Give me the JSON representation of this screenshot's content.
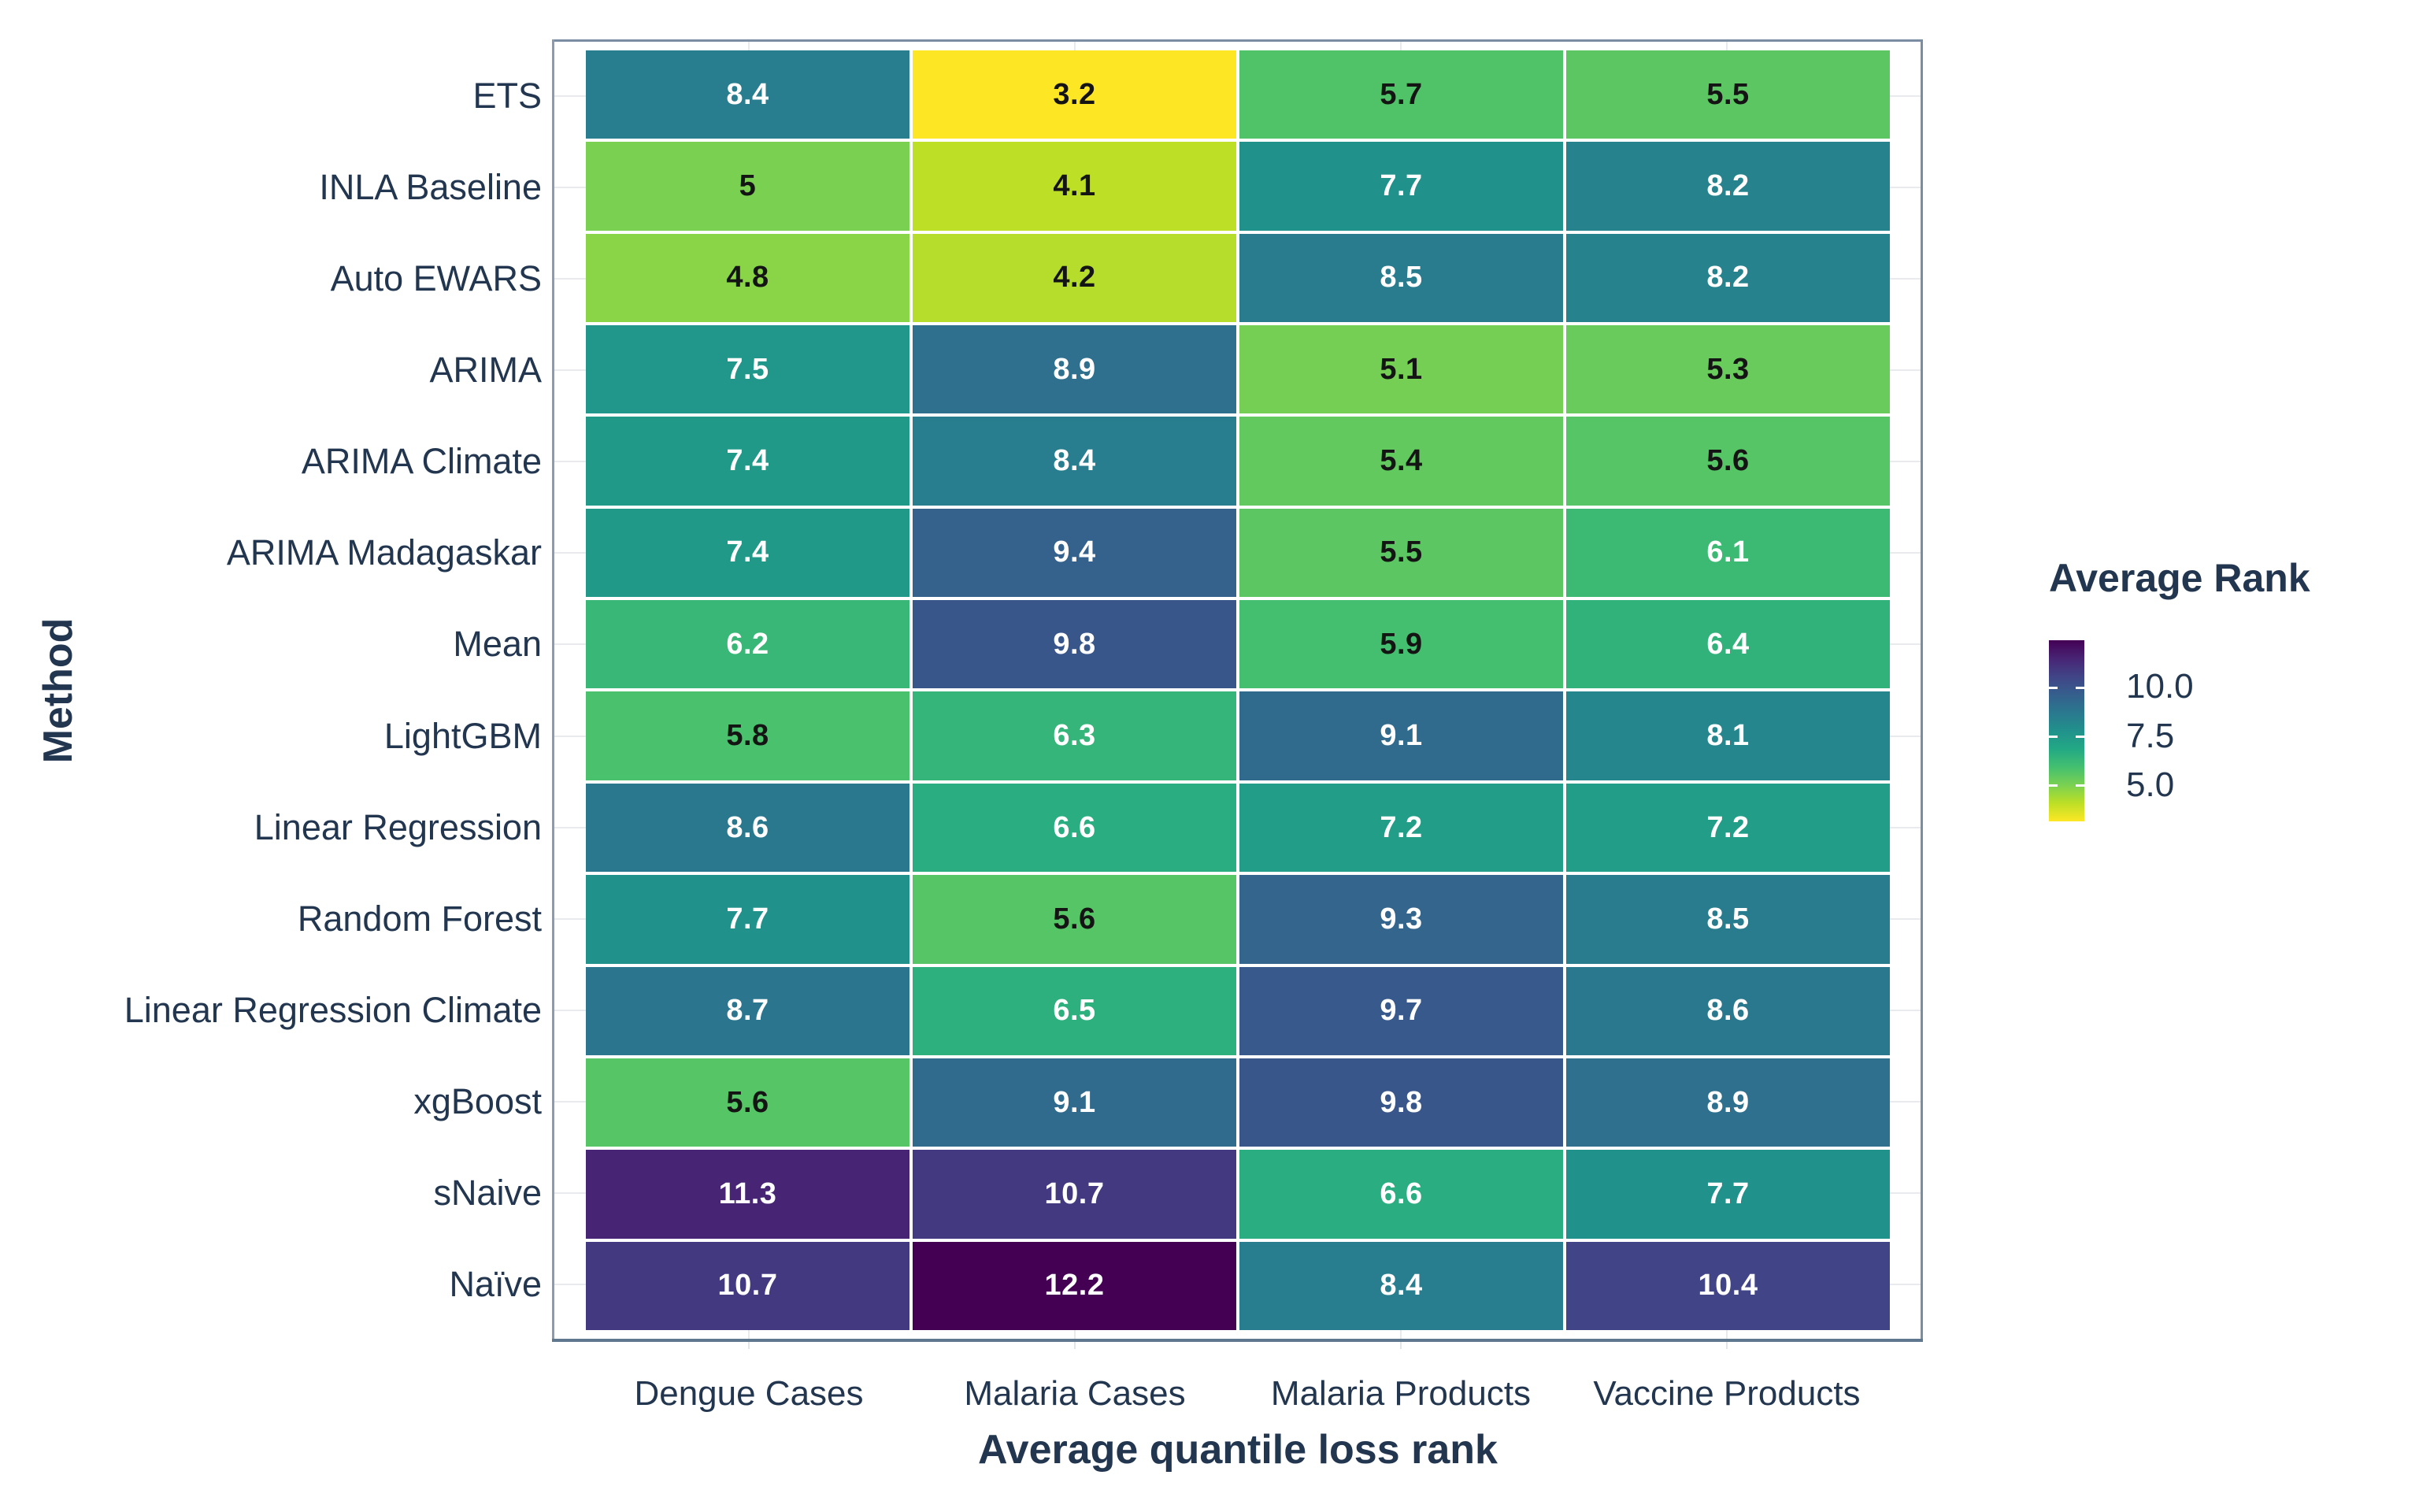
{
  "colors": {
    "background": "#ffffff",
    "axis_text": "#223650",
    "grid": "#e8eaed",
    "panel_border": "#7b8da2",
    "axis_line": "#60788f",
    "cell_text_dark": "#141414",
    "cell_text_light": "#ffffff",
    "viridis_reversed_top": "#440154",
    "viridis_reversed_bottom": "#fde725"
  },
  "legend": {
    "title": "Average Rank",
    "ticks": [
      "10.0",
      "7.5",
      "5.0"
    ]
  },
  "chart_data": {
    "type": "heatmap",
    "title": "",
    "xlabel": "Average quantile loss rank",
    "ylabel": "Method",
    "legend_title": "Average Rank",
    "legend_position": "right",
    "legend_ticks": [
      10.0,
      7.5,
      5.0
    ],
    "colormap": "viridis reversed (low=yellow, high=dark purple)",
    "color_domain": [
      3.2,
      12.2
    ],
    "cell_text_rule": "black text when value < 6, white text when value >= 6",
    "columns": [
      "Dengue Cases",
      "Malaria Cases",
      "Malaria Products",
      "Vaccine Products"
    ],
    "rows": [
      "ETS",
      "INLA Baseline",
      "Auto EWARS",
      "ARIMA",
      "ARIMA Climate",
      "ARIMA Madagaskar",
      "Mean",
      "LightGBM",
      "Linear Regression",
      "Random Forest",
      "Linear Regression Climate",
      "xgBoost",
      "sNaive",
      "Naïve"
    ],
    "values": [
      [
        8.4,
        3.2,
        5.7,
        5.5
      ],
      [
        5,
        4.1,
        7.7,
        8.2
      ],
      [
        4.8,
        4.2,
        8.5,
        8.2
      ],
      [
        7.5,
        8.9,
        5.1,
        5.3
      ],
      [
        7.4,
        8.4,
        5.4,
        5.6
      ],
      [
        7.4,
        9.4,
        5.5,
        6.1
      ],
      [
        6.2,
        9.8,
        5.9,
        6.4
      ],
      [
        5.8,
        6.3,
        9.1,
        8.1
      ],
      [
        8.6,
        6.6,
        7.2,
        7.2
      ],
      [
        7.7,
        5.6,
        9.3,
        8.5
      ],
      [
        8.7,
        6.5,
        9.7,
        8.6
      ],
      [
        5.6,
        9.1,
        9.8,
        8.9
      ],
      [
        11.3,
        10.7,
        6.6,
        7.7
      ],
      [
        10.7,
        12.2,
        8.4,
        10.4
      ]
    ]
  }
}
